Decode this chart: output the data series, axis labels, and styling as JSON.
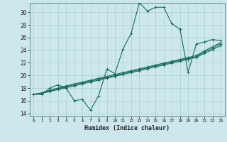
{
  "xlabel": "Humidex (Indice chaleur)",
  "ylabel": "",
  "xlim": [
    -0.5,
    23.5
  ],
  "ylim": [
    13.5,
    31.5
  ],
  "xticks": [
    0,
    1,
    2,
    3,
    4,
    5,
    6,
    7,
    8,
    9,
    10,
    11,
    12,
    13,
    14,
    15,
    16,
    17,
    18,
    19,
    20,
    21,
    22,
    23
  ],
  "yticks": [
    14,
    16,
    18,
    20,
    22,
    24,
    26,
    28,
    30
  ],
  "bg_color": "#cde8ed",
  "grid_color": "#aacdd5",
  "line_color": "#1a6b5a",
  "main_line": [
    17.0,
    17.0,
    18.0,
    18.5,
    18.0,
    16.0,
    16.2,
    14.5,
    16.8,
    21.0,
    20.3,
    24.2,
    26.7,
    31.5,
    30.2,
    30.8,
    30.8,
    28.2,
    27.3,
    20.5,
    25.0,
    25.3,
    25.7,
    25.5
  ],
  "linear_lines": [
    [
      17.0,
      17.15,
      17.45,
      17.75,
      18.05,
      18.35,
      18.65,
      18.95,
      19.25,
      19.55,
      19.85,
      20.15,
      20.45,
      20.75,
      21.05,
      21.35,
      21.65,
      21.95,
      22.25,
      22.55,
      22.85,
      23.5,
      24.1,
      24.7
    ],
    [
      17.0,
      17.2,
      17.55,
      17.9,
      18.2,
      18.5,
      18.8,
      19.1,
      19.4,
      19.7,
      20.0,
      20.3,
      20.6,
      20.9,
      21.2,
      21.5,
      21.8,
      22.1,
      22.4,
      22.7,
      23.0,
      23.7,
      24.3,
      25.0
    ],
    [
      17.0,
      17.25,
      17.65,
      18.0,
      18.35,
      18.65,
      18.95,
      19.25,
      19.55,
      19.85,
      20.15,
      20.45,
      20.75,
      21.05,
      21.35,
      21.65,
      21.95,
      22.25,
      22.55,
      22.85,
      23.15,
      23.9,
      24.55,
      25.2
    ]
  ],
  "marker": "+",
  "markersize": 3,
  "linewidth": 0.8
}
